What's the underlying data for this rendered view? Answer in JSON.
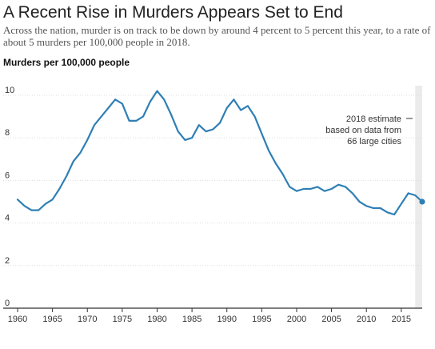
{
  "title": "A Recent Rise in Murders Appears Set to End",
  "subtitle": "Across the nation, murder is on track to be down by around 4 percent to 5 percent this year, to a rate of about 5 murders per 100,000 people in 2018.",
  "chart_data": {
    "type": "line",
    "ylabel": "Murders per 100,000 people",
    "xlabel": "",
    "xlim": [
      1960,
      2018
    ],
    "ylim": [
      0,
      10
    ],
    "x_ticks": [
      1960,
      1965,
      1970,
      1975,
      1980,
      1985,
      1990,
      1995,
      2000,
      2005,
      2010,
      2015
    ],
    "y_ticks": [
      0,
      2,
      4,
      6,
      8,
      10
    ],
    "grid": true,
    "colors": {
      "line": "#2f7fb5",
      "band": "#ebebeb",
      "grid": "#dddddd"
    },
    "series": [
      {
        "x": [
          1960,
          1961,
          1962,
          1963,
          1964,
          1965,
          1966,
          1967,
          1968,
          1969,
          1970,
          1971,
          1972,
          1973,
          1974,
          1975,
          1976,
          1977,
          1978,
          1979,
          1980,
          1981,
          1982,
          1983,
          1984,
          1985,
          1986,
          1987,
          1988,
          1989,
          1990,
          1991,
          1992,
          1993,
          1994,
          1995,
          1996,
          1997,
          1998,
          1999,
          2000,
          2001,
          2002,
          2003,
          2004,
          2005,
          2006,
          2007,
          2008,
          2009,
          2010,
          2011,
          2012,
          2013,
          2014,
          2015,
          2016,
          2017,
          2018
        ],
        "values": [
          5.1,
          4.8,
          4.6,
          4.6,
          4.9,
          5.1,
          5.6,
          6.2,
          6.9,
          7.3,
          7.9,
          8.6,
          9.0,
          9.4,
          9.8,
          9.6,
          8.8,
          8.8,
          9.0,
          9.7,
          10.2,
          9.8,
          9.1,
          8.3,
          7.9,
          8.0,
          8.6,
          8.3,
          8.4,
          8.7,
          9.4,
          9.8,
          9.3,
          9.5,
          9.0,
          8.2,
          7.4,
          6.8,
          6.3,
          5.7,
          5.5,
          5.6,
          5.6,
          5.7,
          5.5,
          5.6,
          5.8,
          5.7,
          5.4,
          5.0,
          4.8,
          4.7,
          4.7,
          4.5,
          4.4,
          4.9,
          5.4,
          5.3,
          5.0
        ]
      }
    ],
    "annotation": {
      "lines": [
        "2018 estimate",
        "based on data from",
        "66 large cities"
      ]
    }
  }
}
